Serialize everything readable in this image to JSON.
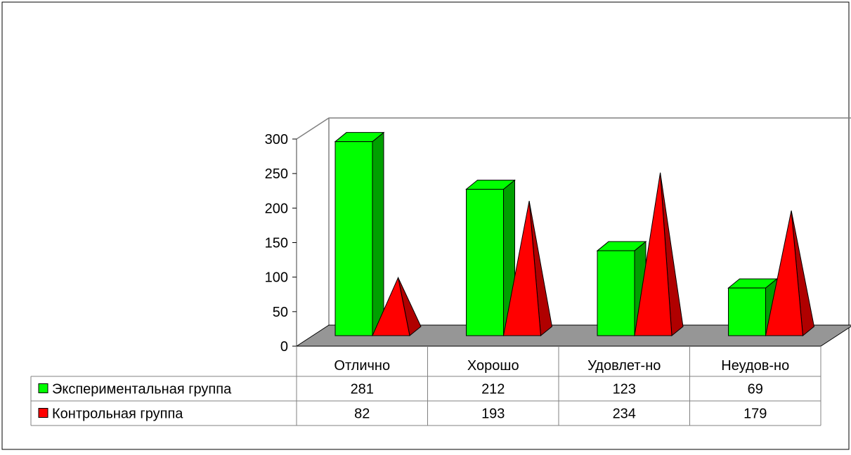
{
  "chart_data": {
    "type": "bar",
    "categories": [
      "Отлично",
      "Хорошо",
      "Удовлет-но",
      "Неудов-но"
    ],
    "series": [
      {
        "name": "Экспериментальная группа",
        "values": [
          281,
          212,
          123,
          69
        ],
        "color": "#00FF00",
        "side_color": "#00A000",
        "shape": "box"
      },
      {
        "name": "Контрольная группа",
        "values": [
          82,
          193,
          234,
          179
        ],
        "color": "#FF0000",
        "side_color": "#B00000",
        "shape": "pyramid"
      }
    ],
    "ylim": [
      0,
      300
    ],
    "yticks": [
      "0",
      "50",
      "100",
      "150",
      "200",
      "250",
      "300"
    ],
    "floor_color": "#969696",
    "data_table": true,
    "legend_placement": "table-left"
  }
}
